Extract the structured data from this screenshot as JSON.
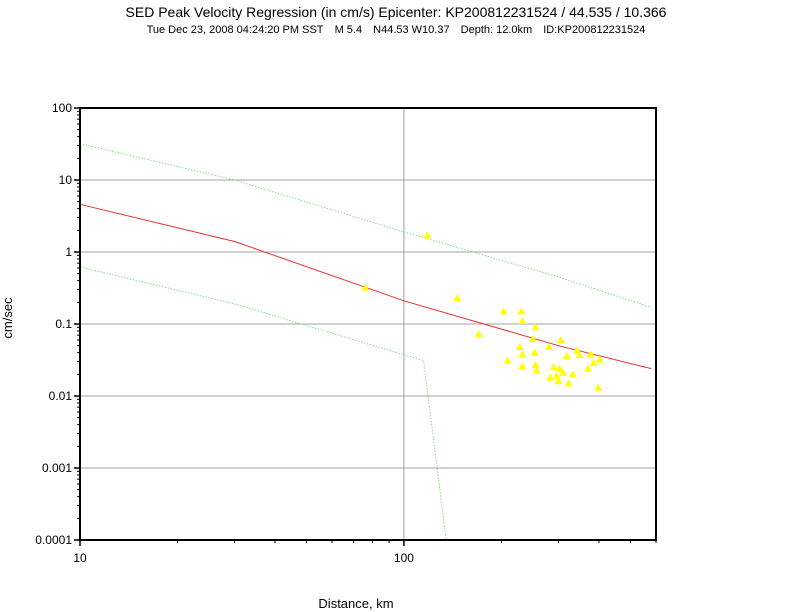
{
  "header": {
    "title": "SED Peak Velocity Regression (in cm/s) Epicenter: KP200812231524 / 44.535 / 10.366",
    "subtitle": {
      "datetime": "Tue Dec 23, 2008 04:24:20 PM SST",
      "magnitude": "M 5.4",
      "location": "N44.53 W10.37",
      "depth": "Depth: 12.0km",
      "id": "ID:KP200812231524"
    }
  },
  "chart_data": {
    "type": "scatter",
    "title": "SED Peak Velocity Regression (in cm/s) Epicenter: KP200812231524 / 44.535 / 10.366",
    "xlabel": "Distance, km",
    "ylabel": "cm/sec",
    "xscale": "log",
    "yscale": "log",
    "xlim": [
      10,
      600
    ],
    "ylim": [
      0.0001,
      100
    ],
    "x_ticks": [
      {
        "value": 10,
        "label": "10"
      },
      {
        "value": 100,
        "label": "100"
      }
    ],
    "y_ticks": [
      {
        "value": 0.0001,
        "label": "0.0001"
      },
      {
        "value": 0.001,
        "label": "0.001"
      },
      {
        "value": 0.01,
        "label": "0.01"
      },
      {
        "value": 0.1,
        "label": "0.1"
      },
      {
        "value": 1,
        "label": "1"
      },
      {
        "value": 10,
        "label": "10"
      },
      {
        "value": 100,
        "label": "100"
      }
    ],
    "grid": true,
    "colors": {
      "regression": "#e83030",
      "bounds": "#88dd88",
      "points": "#ffff00",
      "grid": "#a0a0a0"
    },
    "regression": {
      "name": "",
      "points": [
        [
          10,
          4.6
        ],
        [
          30,
          1.4
        ],
        [
          100,
          0.21
        ],
        [
          300,
          0.05
        ],
        [
          580,
          0.024
        ]
      ]
    },
    "upper_bound": {
      "name": "",
      "points": [
        [
          10,
          32
        ],
        [
          30,
          10
        ],
        [
          100,
          1.9
        ],
        [
          300,
          0.45
        ],
        [
          580,
          0.17
        ]
      ]
    },
    "lower_bound": {
      "name": "",
      "points": [
        [
          10,
          0.62
        ],
        [
          30,
          0.19
        ],
        [
          115,
          0.031
        ],
        [
          135,
          0.0001
        ]
      ]
    },
    "stations": {
      "marker": "triangle",
      "points": [
        [
          76,
          0.32
        ],
        [
          118,
          1.7
        ],
        [
          146,
          0.23
        ],
        [
          170,
          0.072
        ],
        [
          203,
          0.15
        ],
        [
          209,
          0.031
        ],
        [
          230,
          0.15
        ],
        [
          232,
          0.11
        ],
        [
          228,
          0.048
        ],
        [
          232,
          0.038
        ],
        [
          232,
          0.026
        ],
        [
          255,
          0.09
        ],
        [
          250,
          0.062
        ],
        [
          253,
          0.04
        ],
        [
          255,
          0.027
        ],
        [
          257,
          0.023
        ],
        [
          280,
          0.048
        ],
        [
          283,
          0.018
        ],
        [
          290,
          0.025
        ],
        [
          296,
          0.019
        ],
        [
          300,
          0.016
        ],
        [
          302,
          0.024
        ],
        [
          305,
          0.06
        ],
        [
          310,
          0.021
        ],
        [
          318,
          0.036
        ],
        [
          322,
          0.015
        ],
        [
          332,
          0.02
        ],
        [
          342,
          0.043
        ],
        [
          348,
          0.037
        ],
        [
          370,
          0.024
        ],
        [
          378,
          0.038
        ],
        [
          385,
          0.029
        ],
        [
          398,
          0.013
        ],
        [
          402,
          0.032
        ]
      ]
    }
  }
}
